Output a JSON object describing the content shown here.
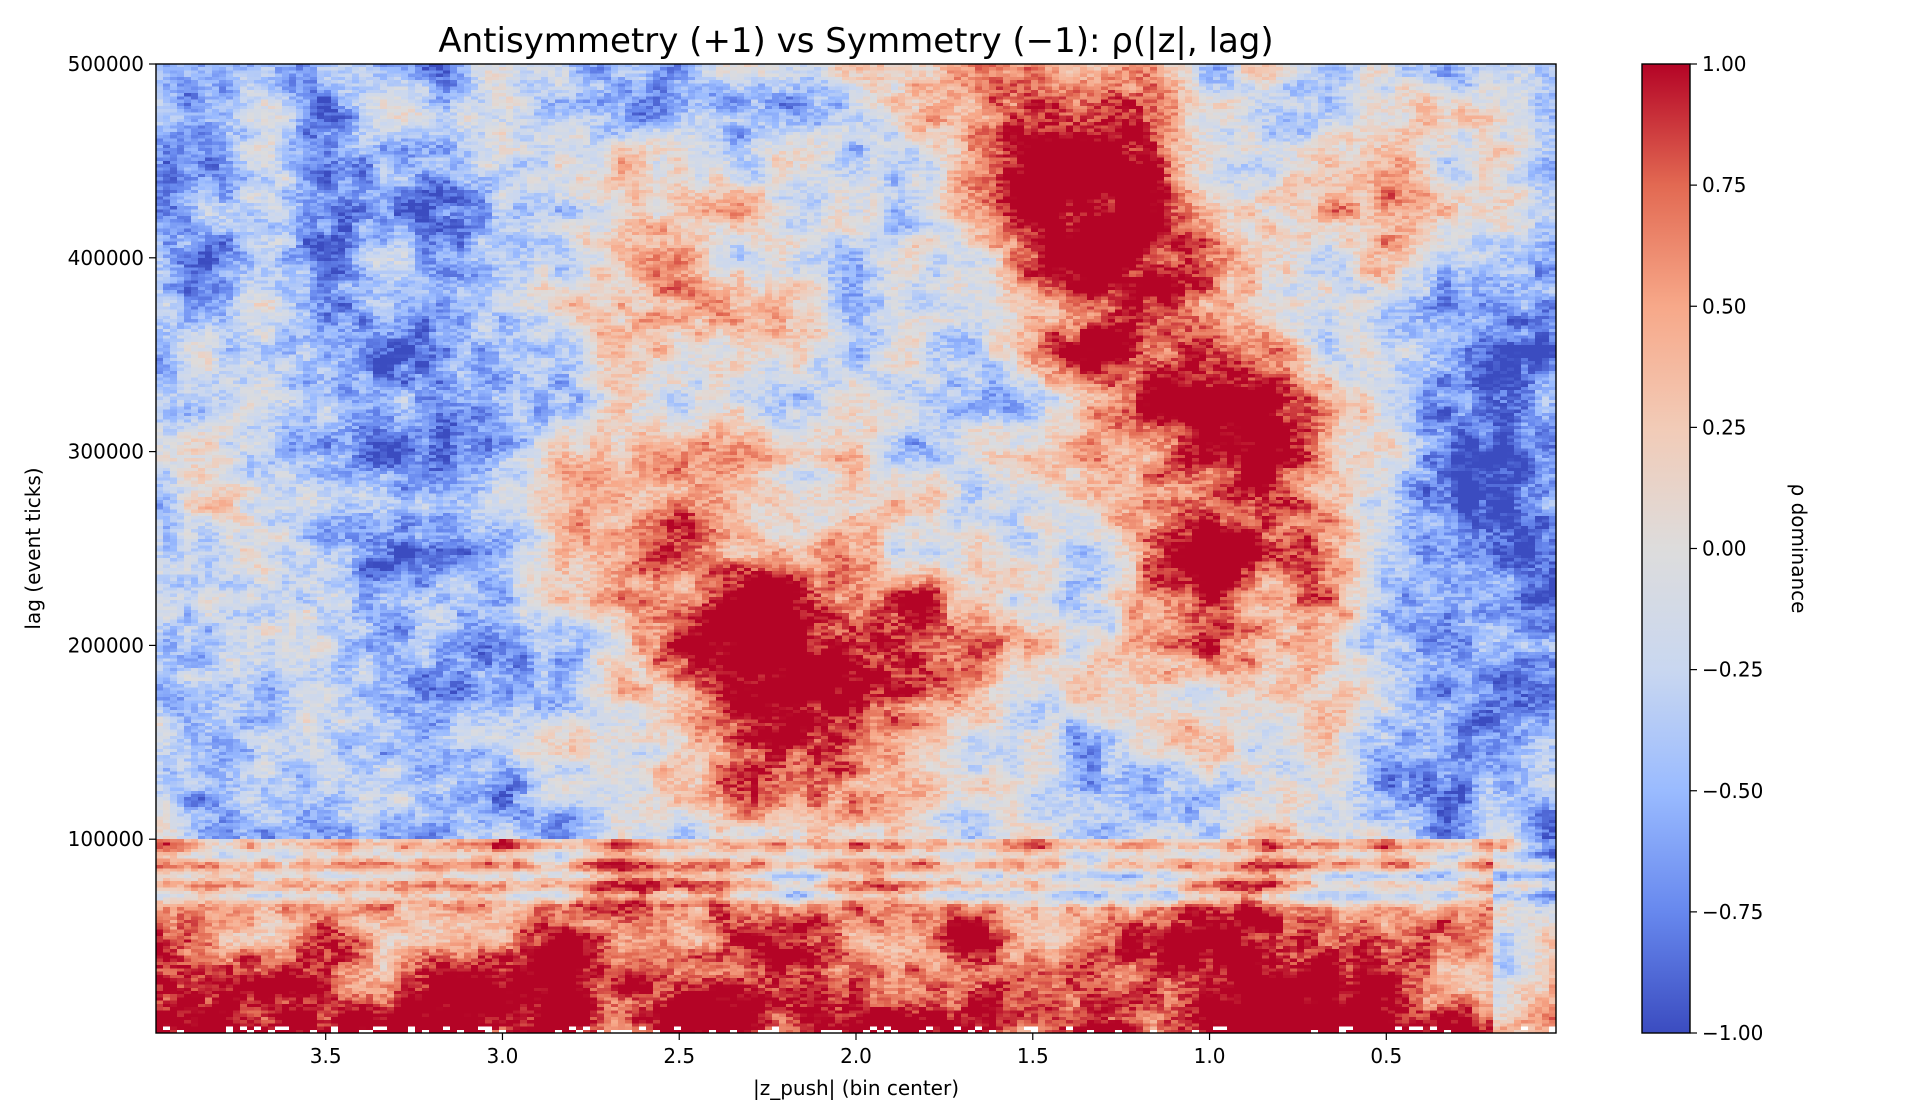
{
  "chart_data": {
    "type": "heatmap",
    "title": "Antisymmetry (+1) vs Symmetry (−1): ρ(|z|, lag)",
    "xlabel": "|z_push| (bin center)",
    "ylabel": "lag (event ticks)",
    "x_reversed": true,
    "xlim": [
      3.98,
      0.02
    ],
    "ylim": [
      0,
      500000
    ],
    "x_ticks": [
      3.5,
      3.0,
      2.5,
      2.0,
      1.5,
      1.0,
      0.5
    ],
    "x_tick_labels": [
      "3.5",
      "3.0",
      "2.5",
      "2.0",
      "1.5",
      "1.0",
      "0.5"
    ],
    "y_ticks": [
      100000,
      200000,
      300000,
      400000,
      500000
    ],
    "y_tick_labels": [
      "100000",
      "200000",
      "300000",
      "400000",
      "500000"
    ],
    "colorbar": {
      "label": "ρ dominance",
      "colormap": "coolwarm",
      "vmin": -1.0,
      "vmax": 1.0,
      "ticks": [
        1.0,
        0.75,
        0.5,
        0.25,
        0.0,
        -0.25,
        -0.5,
        -0.75,
        -1.0
      ],
      "tick_labels": [
        "1.00",
        "0.75",
        "0.50",
        "0.25",
        "0.00",
        "−0.25",
        "−0.50",
        "−0.75",
        "−1.00"
      ],
      "colors": [
        "#3b4cc0",
        "#6788ee",
        "#9abbff",
        "#c9d7f0",
        "#dddcdc",
        "#f2cbb7",
        "#f7a889",
        "#e26952",
        "#b40426"
      ]
    },
    "grid_shape": {
      "x_bins": 200,
      "lag_rows": 300
    },
    "regions": [
      {
        "description": "low-lag band, strongly positive",
        "z_range": [
          0.3,
          3.98
        ],
        "lag_range": [
          0,
          60000
        ],
        "value": 0.85
      },
      {
        "description": "low-lag band, weaker positive",
        "z_range": [
          0.2,
          3.98
        ],
        "lag_range": [
          60000,
          100000
        ],
        "value": 0.45
      },
      {
        "description": "large |z| region, mostly negative",
        "z_range": [
          2.7,
          3.98
        ],
        "lag_range": [
          100000,
          500000
        ],
        "value": -0.55
      },
      {
        "description": "diagonal positive ridge",
        "z_range": [
          1.8,
          2.9
        ],
        "lag_range": [
          100000,
          300000
        ],
        "value": 0.75
      },
      {
        "description": "central region near |z| 1.0, strongly positive",
        "z_range": [
          0.65,
          1.45
        ],
        "lag_range": [
          100000,
          420000
        ],
        "value": 0.9
      },
      {
        "description": "upper region near |z| 1.6, positive",
        "z_range": [
          1.4,
          2.0
        ],
        "lag_range": [
          380000,
          500000
        ],
        "value": 0.7
      },
      {
        "description": "small |z| edge, negative",
        "z_range": [
          0.02,
          0.6
        ],
        "lag_range": [
          100000,
          500000
        ],
        "value": -0.6
      }
    ]
  }
}
